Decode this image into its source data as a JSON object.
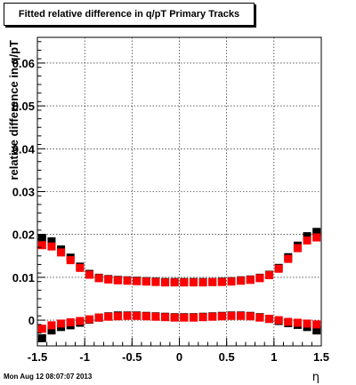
{
  "chart_data": {
    "type": "scatter",
    "title": "Fitted relative difference in q/pT  Primary Tracks",
    "xlabel": "η",
    "ylabel": "relative difference in q/pT",
    "xlim": [
      -1.5,
      1.5
    ],
    "ylim": [
      -0.006,
      0.066
    ],
    "grid": true,
    "xticks": [
      -1.5,
      -1,
      -0.5,
      0,
      0.5,
      1,
      1.5
    ],
    "xtick_labels": [
      "-1.5",
      "-1",
      "-0.5",
      "0",
      "0.5",
      "1",
      "1.5"
    ],
    "yticks": [
      0,
      0.01,
      0.02,
      0.03,
      0.04,
      0.05,
      0.06
    ],
    "ytick_labels": [
      "0",
      "0.01",
      "0.02",
      "0.03",
      "0.04",
      "0.05",
      "0.06"
    ],
    "series_colors": [
      "#000000",
      "#ff0000"
    ],
    "x": [
      -1.45,
      -1.35,
      -1.25,
      -1.15,
      -1.05,
      -0.95,
      -0.85,
      -0.75,
      -0.65,
      -0.55,
      -0.45,
      -0.35,
      -0.25,
      -0.15,
      -0.05,
      0.05,
      0.15,
      0.25,
      0.35,
      0.45,
      0.55,
      0.65,
      0.75,
      0.85,
      0.95,
      1.05,
      1.15,
      1.25,
      1.35,
      1.45
    ],
    "series": [
      {
        "values": [
          0.0192,
          0.0184,
          0.0165,
          0.0146,
          0.0125,
          0.0108,
          0.0099,
          0.0096,
          0.0094,
          0.0093,
          0.0092,
          0.0091,
          0.009,
          0.0089,
          0.0089,
          0.0089,
          0.0089,
          0.0089,
          0.0089,
          0.009,
          0.0091,
          0.0093,
          0.0095,
          0.0099,
          0.0106,
          0.0122,
          0.0147,
          0.0174,
          0.0196,
          0.0206
        ]
      },
      {
        "values": [
          0.0175,
          0.0172,
          0.0158,
          0.014,
          0.0122,
          0.0106,
          0.0098,
          0.0095,
          0.0093,
          0.0092,
          0.0091,
          0.009,
          0.0089,
          0.0088,
          0.0088,
          0.0088,
          0.0088,
          0.0088,
          0.0089,
          0.0089,
          0.009,
          0.0092,
          0.0094,
          0.0098,
          0.0105,
          0.012,
          0.0143,
          0.0168,
          0.0186,
          0.0193
        ]
      },
      {
        "values": [
          -0.0042,
          -0.0024,
          -0.0016,
          -0.0012,
          -0.0006,
          0.0001,
          0.0006,
          0.0009,
          0.0011,
          0.0011,
          0.0011,
          0.001,
          0.0009,
          0.0008,
          0.0007,
          0.0007,
          0.0007,
          0.0008,
          0.0009,
          0.001,
          0.0011,
          0.0011,
          0.001,
          0.0007,
          0.0003,
          -0.0002,
          -0.0007,
          -0.0011,
          -0.0016,
          -0.0024
        ]
      },
      {
        "values": [
          -0.002,
          -0.0012,
          -0.0008,
          -0.0005,
          -0.0002,
          0.0002,
          0.0006,
          0.0008,
          0.0009,
          0.001,
          0.001,
          0.0009,
          0.0008,
          0.0007,
          0.0006,
          0.0006,
          0.0006,
          0.0007,
          0.0008,
          0.0009,
          0.001,
          0.001,
          0.0009,
          0.0006,
          0.0003,
          0.0,
          -0.0004,
          -0.0006,
          -0.0008,
          -0.001
        ]
      }
    ],
    "timestamp": "Mon Aug 12 08:07:07 2013"
  }
}
